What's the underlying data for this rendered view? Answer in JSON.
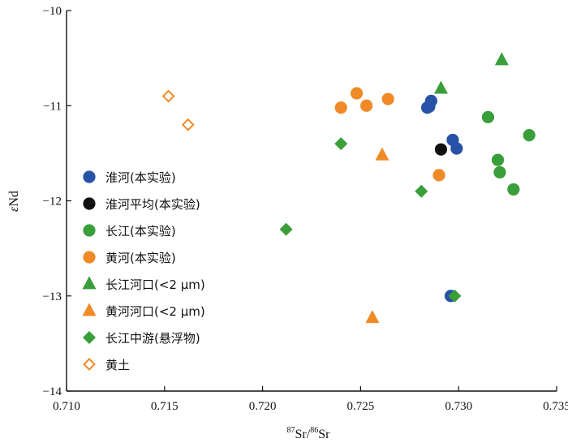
{
  "chart_data": {
    "type": "scatter",
    "title": "",
    "xlabel": {
      "sup1": "87",
      "base1": "Sr",
      "sep": "/",
      "sup2": "86",
      "base2": "Sr"
    },
    "ylabel": {
      "symbol": "ε",
      "rest": "Nd"
    },
    "xlim": [
      0.71,
      0.735
    ],
    "ylim": [
      -14,
      -10
    ],
    "x_ticks": [
      0.71,
      0.715,
      0.72,
      0.725,
      0.73,
      0.735
    ],
    "x_tick_labels": [
      "0.710",
      "0.715",
      "0.720",
      "0.725",
      "0.730",
      "0.735"
    ],
    "y_ticks": [
      -14,
      -13,
      -12,
      -11,
      -10
    ],
    "y_tick_labels": [
      "−14",
      "−13",
      "−12",
      "−11",
      "−10"
    ],
    "grid": false,
    "legend_position": "left",
    "series": [
      {
        "name": "淮河(本实验)",
        "marker": "circle",
        "filled": true,
        "color": "#2752a8",
        "points": [
          [
            0.7284,
            -11.02
          ],
          [
            0.7286,
            -10.95
          ],
          [
            0.7285,
            -11.01
          ],
          [
            0.7297,
            -11.36
          ],
          [
            0.7299,
            -11.45
          ],
          [
            0.7296,
            -13.0
          ]
        ]
      },
      {
        "name": "淮河平均(本实验)",
        "marker": "circle",
        "filled": true,
        "color": "#111111",
        "points": [
          [
            0.7291,
            -11.46
          ]
        ]
      },
      {
        "name": "长江(本实验)",
        "marker": "circle",
        "filled": true,
        "color": "#3a9e3a",
        "points": [
          [
            0.7315,
            -11.12
          ],
          [
            0.7336,
            -11.31
          ],
          [
            0.732,
            -11.57
          ],
          [
            0.7321,
            -11.7
          ],
          [
            0.7328,
            -11.88
          ]
        ]
      },
      {
        "name": "黄河(本实验)",
        "marker": "circle",
        "filled": true,
        "color": "#f08a26",
        "points": [
          [
            0.724,
            -11.02
          ],
          [
            0.7248,
            -10.87
          ],
          [
            0.7253,
            -11.0
          ],
          [
            0.7264,
            -10.93
          ],
          [
            0.729,
            -11.73
          ]
        ]
      },
      {
        "name": "长江河口(<2 μm)",
        "marker": "triangle",
        "filled": true,
        "color": "#3a9e3a",
        "points": [
          [
            0.7291,
            -10.82
          ],
          [
            0.7322,
            -10.52
          ]
        ]
      },
      {
        "name": "黄河河口(<2 μm)",
        "marker": "triangle",
        "filled": true,
        "color": "#f08a26",
        "points": [
          [
            0.7261,
            -11.52
          ],
          [
            0.7256,
            -13.23
          ]
        ]
      },
      {
        "name": "长江中游(悬浮物)",
        "marker": "diamond",
        "filled": true,
        "color": "#3a9e3a",
        "points": [
          [
            0.724,
            -11.4
          ],
          [
            0.7212,
            -12.3
          ],
          [
            0.7281,
            -11.9
          ],
          [
            0.7298,
            -13.0
          ]
        ]
      },
      {
        "name": "黄土",
        "marker": "diamond",
        "filled": false,
        "color": "#f08a26",
        "points": [
          [
            0.7152,
            -10.9
          ],
          [
            0.7162,
            -11.2
          ]
        ]
      }
    ]
  }
}
